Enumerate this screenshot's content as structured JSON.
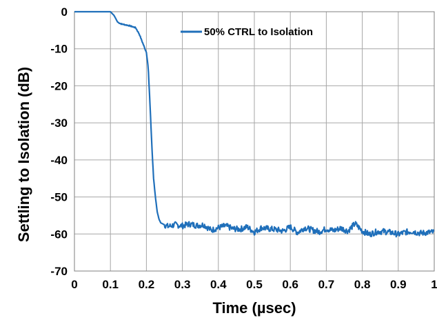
{
  "chart_data": {
    "type": "line",
    "title": "",
    "xlabel": "Time (µsec)",
    "ylabel": "Settling to Isolation  (dB)",
    "xlim": [
      0,
      1
    ],
    "ylim": [
      -70,
      0
    ],
    "x_ticks": [
      "0",
      "0.1",
      "0.2",
      "0.3",
      "0.4",
      "0.5",
      "0.6",
      "0.7",
      "0.8",
      "0.9",
      "1"
    ],
    "y_ticks": [
      "0",
      "-10",
      "-20",
      "-30",
      "-40",
      "-50",
      "-60",
      "-70"
    ],
    "grid": true,
    "legend_position": "top-right",
    "series": [
      {
        "name": "50% CTRL to Isolation",
        "color": "#1f6fba",
        "x": [
          0,
          0.1,
          0.11,
          0.12,
          0.13,
          0.15,
          0.17,
          0.18,
          0.19,
          0.2,
          0.205,
          0.21,
          0.215,
          0.22,
          0.225,
          0.23,
          0.235,
          0.24,
          0.25,
          0.26,
          0.28,
          0.3,
          0.32,
          0.34,
          0.36,
          0.38,
          0.4,
          0.42,
          0.44,
          0.46,
          0.48,
          0.5,
          0.52,
          0.54,
          0.56,
          0.58,
          0.6,
          0.62,
          0.64,
          0.66,
          0.68,
          0.7,
          0.72,
          0.74,
          0.76,
          0.78,
          0.8,
          0.82,
          0.84,
          0.86,
          0.88,
          0.9,
          0.92,
          0.94,
          0.96,
          0.98,
          1.0
        ],
        "values": [
          0,
          0,
          -1,
          -2.8,
          -3.3,
          -3.7,
          -4.3,
          -6,
          -8.5,
          -11,
          -15,
          -25,
          -36,
          -45,
          -50,
          -54,
          -56,
          -57,
          -57.5,
          -58,
          -57.5,
          -57.8,
          -57.3,
          -57.7,
          -57.5,
          -59,
          -58.3,
          -57.8,
          -58.6,
          -58.7,
          -58.1,
          -59.5,
          -58.3,
          -58.6,
          -58.8,
          -59.2,
          -58.1,
          -59.6,
          -58.3,
          -58.9,
          -59.4,
          -58.6,
          -59.1,
          -58.4,
          -59.2,
          -57.2,
          -59.2,
          -60.1,
          -59.4,
          -59.3,
          -59.6,
          -60.1,
          -59.5,
          -59.3,
          -59.8,
          -59.6,
          -59.5
        ]
      }
    ]
  }
}
